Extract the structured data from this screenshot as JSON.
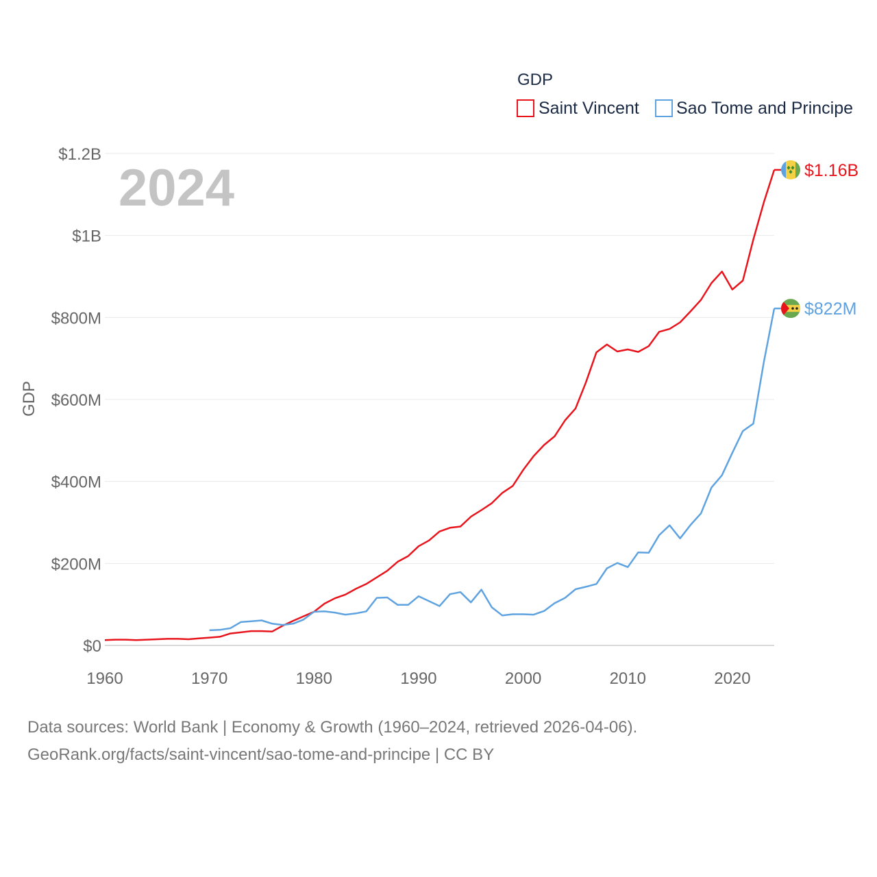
{
  "chart_data": {
    "type": "line",
    "title": "GDP",
    "ylabel": "GDP",
    "xlabel": "",
    "current_year": "2024",
    "xlim": [
      1960,
      2024
    ],
    "ylim": [
      0,
      1200000000
    ],
    "x_ticks": [
      {
        "value": 1960,
        "label": "1960"
      },
      {
        "value": 1970,
        "label": "1970"
      },
      {
        "value": 1980,
        "label": "1980"
      },
      {
        "value": 1990,
        "label": "1990"
      },
      {
        "value": 2000,
        "label": "2000"
      },
      {
        "value": 2010,
        "label": "2010"
      },
      {
        "value": 2020,
        "label": "2020"
      }
    ],
    "y_ticks": [
      {
        "value": 0,
        "label": "$0"
      },
      {
        "value": 200000000,
        "label": "$200M"
      },
      {
        "value": 400000000,
        "label": "$400M"
      },
      {
        "value": 600000000,
        "label": "$600M"
      },
      {
        "value": 800000000,
        "label": "$800M"
      },
      {
        "value": 1000000000,
        "label": "$1B"
      },
      {
        "value": 1200000000,
        "label": "$1.2B"
      }
    ],
    "legend_position": "top-right",
    "series": [
      {
        "name": "Saint Vincent",
        "color": "#e8141c",
        "end_label": "$1.16B",
        "flag_icon": "saint-vincent-flag-icon",
        "start_year": 1960,
        "values": [
          13,
          14,
          14,
          13,
          14,
          15,
          16,
          16,
          15,
          17,
          19,
          21,
          29,
          32,
          35,
          35,
          34,
          48,
          60,
          71,
          82,
          102,
          115,
          124,
          138,
          150,
          166,
          182,
          204,
          218,
          242,
          256,
          278,
          287,
          290,
          314,
          330,
          347,
          372,
          389,
          428,
          462,
          489,
          510,
          549,
          578,
          642,
          715,
          734,
          717,
          722,
          716,
          730,
          765,
          772,
          788,
          815,
          843,
          884,
          912,
          868,
          890,
          990,
          1080,
          1160
        ]
      },
      {
        "name": "Sao Tome and Principe",
        "color": "#5ea3e0",
        "end_label": "$822M",
        "flag_icon": "sao-tome-flag-icon",
        "start_year": 1970,
        "values": [
          37,
          38,
          42,
          57,
          59,
          61,
          53,
          50,
          53,
          63,
          82,
          83,
          80,
          75,
          78,
          83,
          116,
          117,
          99,
          99,
          120,
          108,
          96,
          125,
          130,
          105,
          136,
          93,
          73,
          76,
          76,
          75,
          84,
          103,
          116,
          137,
          143,
          150,
          188,
          201,
          191,
          227,
          226,
          269,
          293,
          261,
          294,
          322,
          385,
          415,
          470,
          523,
          541,
          690,
          822
        ]
      }
    ],
    "value_unit_multiplier": 1000000
  },
  "footer": {
    "line1": "Data sources: World Bank | Economy & Growth (1960–2024, retrieved 2026-04-06).",
    "line2": "GeoRank.org/facts/saint-vincent/sao-tome-and-principe | CC BY"
  }
}
